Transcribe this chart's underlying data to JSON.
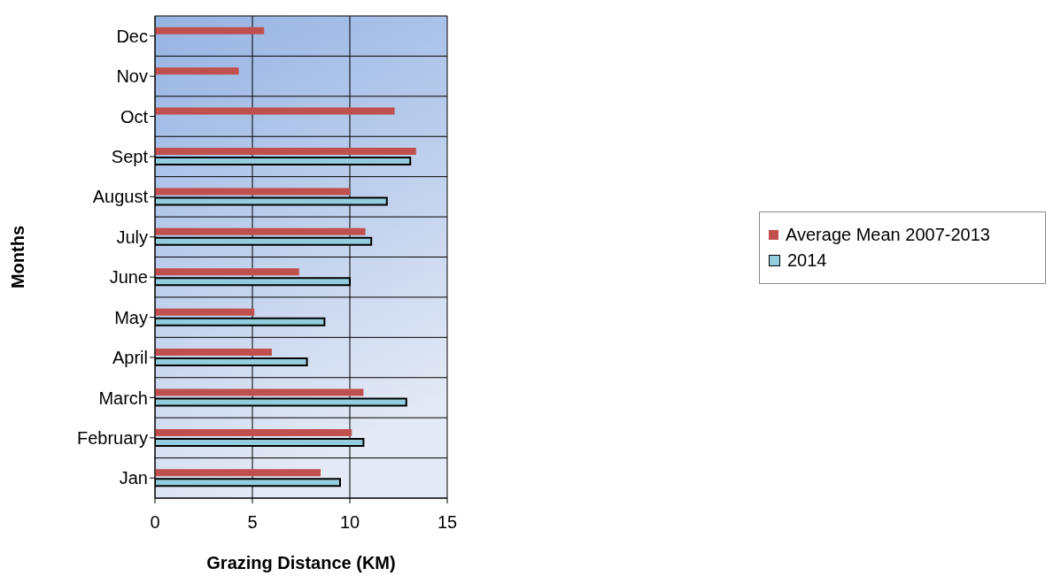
{
  "chart_data": {
    "type": "bar",
    "orientation": "horizontal",
    "xlabel": "Grazing Distance (KM)",
    "ylabel": "Months",
    "categories": [
      "Dec",
      "Nov",
      "Oct",
      "Sept",
      "August",
      "July",
      "June",
      "May",
      "April",
      "March",
      "February",
      "Jan"
    ],
    "series": [
      {
        "name": "Average Mean 2007-2013",
        "color": "#c0504d",
        "values": [
          5.6,
          4.3,
          12.3,
          13.4,
          10.0,
          10.8,
          7.4,
          5.1,
          6.0,
          10.7,
          10.1,
          8.5
        ]
      },
      {
        "name": "2014",
        "color": "#93cddd",
        "values": [
          null,
          null,
          null,
          13.1,
          11.9,
          11.1,
          10.0,
          8.7,
          7.8,
          12.9,
          10.7,
          9.5
        ]
      }
    ],
    "xlim": [
      0,
      15
    ],
    "xticks": [
      0,
      5,
      10,
      15
    ],
    "grid": true,
    "legend": "right"
  }
}
